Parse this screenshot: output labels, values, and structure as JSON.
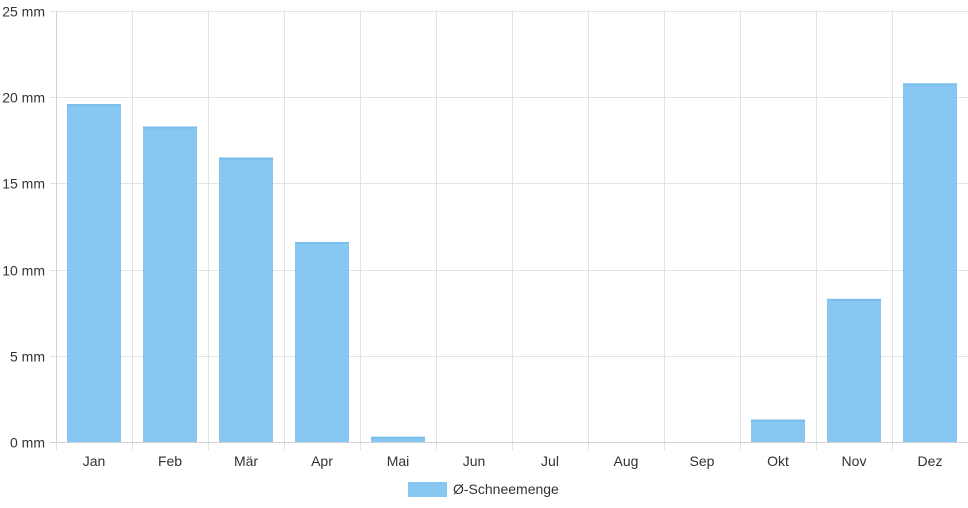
{
  "chart_data": {
    "type": "bar",
    "categories": [
      "Jan",
      "Feb",
      "Mär",
      "Apr",
      "Mai",
      "Jun",
      "Jul",
      "Aug",
      "Sep",
      "Okt",
      "Nov",
      "Dez"
    ],
    "series": [
      {
        "name": "Ø-Schneemenge",
        "values": [
          19.6,
          18.3,
          16.5,
          11.6,
          0.3,
          0,
          0,
          0,
          0,
          1.3,
          8.3,
          20.8
        ],
        "color": "#87c7f2"
      }
    ],
    "ylim": [
      0,
      25
    ],
    "y_ticks": [
      0,
      5,
      10,
      15,
      20,
      25
    ],
    "y_unit": "mm",
    "y_tick_labels": [
      "0 mm",
      "5 mm",
      "10 mm",
      "15 mm",
      "20 mm",
      "25 mm"
    ],
    "grid": true,
    "legend_position": "bottom-center",
    "title": "",
    "xlabel": "",
    "ylabel": ""
  }
}
